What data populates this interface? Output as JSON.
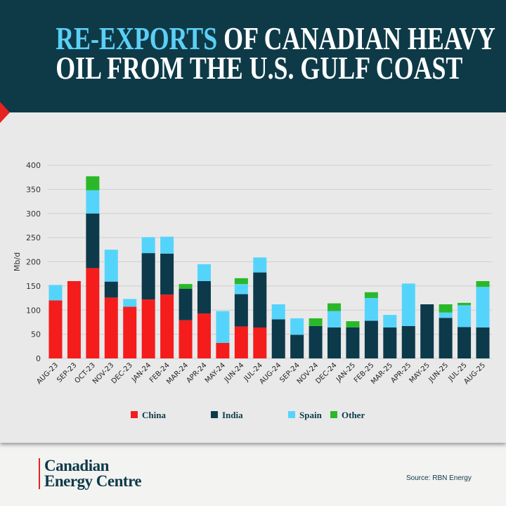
{
  "header": {
    "title_highlight": "RE-EXPORTS",
    "title_rest_line1": " OF CANADIAN HEAVY",
    "title_line2": "OIL FROM THE U.S. GULF COAST"
  },
  "footer": {
    "logo_line1": "Canadian",
    "logo_line2": "Energy Centre",
    "source": "Source: RBN Energy"
  },
  "colors": {
    "China": "#f51c1c",
    "India": "#0c3a4b",
    "Spain": "#55d4fb",
    "Other": "#2ab82a",
    "header_bg": "#0e3a48",
    "highlight": "#5ccff5"
  },
  "chart_data": {
    "type": "bar",
    "stacked": true,
    "ylabel": "Mb/d",
    "ylim": [
      0,
      400
    ],
    "yticks": [
      0,
      50,
      100,
      150,
      200,
      250,
      300,
      350,
      400
    ],
    "grid": true,
    "legend_position": "bottom",
    "categories": [
      "AUG-23",
      "SEP-23",
      "OCT-23",
      "NOV-23",
      "DEC-23",
      "JAN-24",
      "FEB-24",
      "MAR-24",
      "APR-24",
      "MAY-24",
      "JUN-24",
      "JUL-24",
      "AUG-24",
      "SEP-24",
      "NOV-24",
      "DEC-24",
      "JAN-25",
      "FEB-25",
      "MAR-25",
      "APR-25",
      "MAY-25",
      "JUN-25",
      "JUL-25",
      "AUG-25"
    ],
    "series": [
      {
        "name": "China",
        "values": [
          120,
          160,
          187,
          126,
          107,
          122,
          132,
          79,
          93,
          32,
          66,
          64,
          0,
          0,
          0,
          0,
          0,
          0,
          0,
          0,
          0,
          0,
          0,
          0
        ]
      },
      {
        "name": "India",
        "values": [
          0,
          0,
          113,
          33,
          0,
          96,
          85,
          65,
          67,
          0,
          67,
          114,
          81,
          49,
          67,
          64,
          64,
          78,
          64,
          67,
          112,
          84,
          65,
          64
        ]
      },
      {
        "name": "Spain",
        "values": [
          32,
          0,
          48,
          66,
          16,
          33,
          35,
          0,
          35,
          66,
          21,
          31,
          31,
          34,
          0,
          34,
          0,
          47,
          26,
          88,
          0,
          11,
          45,
          84
        ]
      },
      {
        "name": "Other",
        "values": [
          0,
          0,
          29,
          0,
          0,
          0,
          0,
          10,
          0,
          0,
          12,
          0,
          0,
          0,
          16,
          16,
          13,
          12,
          0,
          0,
          0,
          17,
          5,
          12
        ]
      }
    ]
  }
}
